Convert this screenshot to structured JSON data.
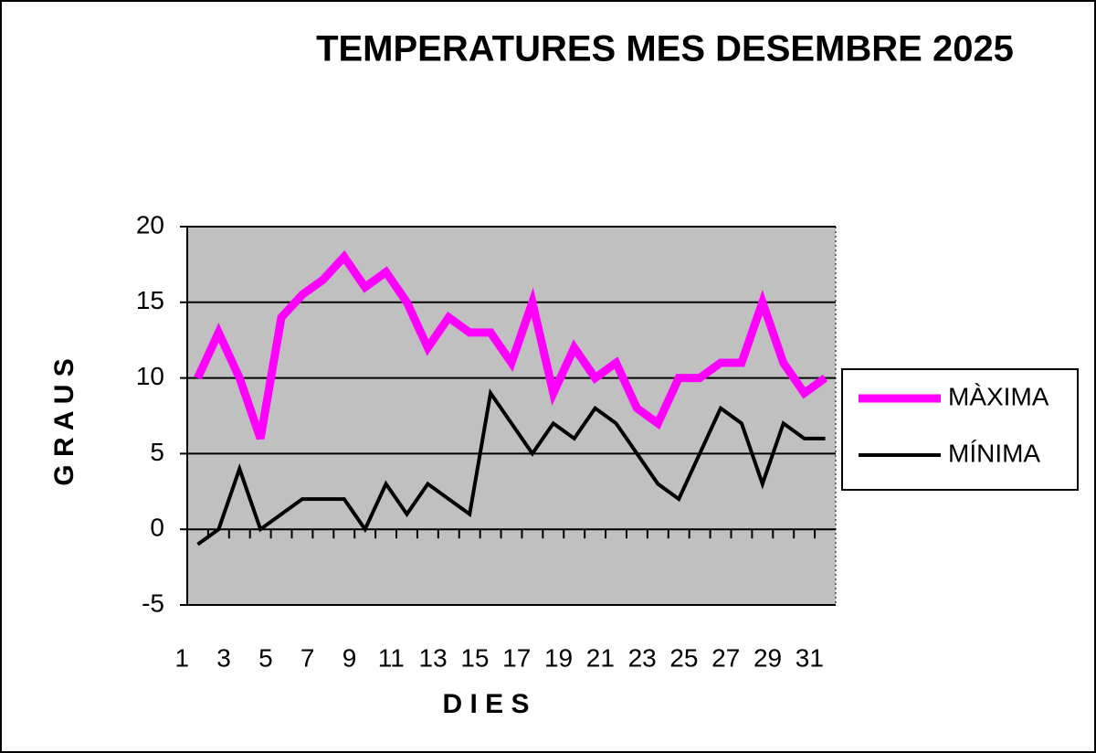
{
  "chart_data": {
    "type": "line",
    "title": "TEMPERATURES MES DESEMBRE 2025",
    "x_label": "D I E S",
    "y_label": "G R A U S",
    "categories": [
      "1",
      null,
      "3",
      null,
      "5",
      null,
      "7",
      null,
      "9",
      null,
      "11",
      null,
      "13",
      null,
      "15",
      null,
      "17",
      null,
      "19",
      null,
      "21",
      null,
      "23",
      null,
      "25",
      null,
      "27",
      null,
      "29",
      null,
      "31"
    ],
    "series": [
      {
        "name": "MÀXIMA",
        "color": "#ff00ff",
        "values": [
          10,
          13,
          10,
          6,
          14,
          15.5,
          16.5,
          18,
          16,
          17,
          15,
          12,
          14,
          13,
          13,
          11,
          15,
          9,
          12,
          10,
          11,
          8,
          7,
          10,
          10,
          11,
          11,
          15,
          11,
          9,
          10
        ]
      },
      {
        "name": "MÍNIMA",
        "color": "#000000",
        "values": [
          -1,
          0,
          4,
          0,
          1,
          2,
          2,
          2,
          0,
          3,
          1,
          3,
          2,
          1,
          9,
          7,
          5,
          7,
          6,
          8,
          7,
          5,
          3,
          2,
          5,
          8,
          7,
          3,
          7,
          6,
          6
        ]
      }
    ],
    "ylim": [
      -5,
      20
    ],
    "yticks": [
      -5,
      0,
      5,
      10,
      15,
      20
    ],
    "grid": true,
    "legend": "right"
  }
}
